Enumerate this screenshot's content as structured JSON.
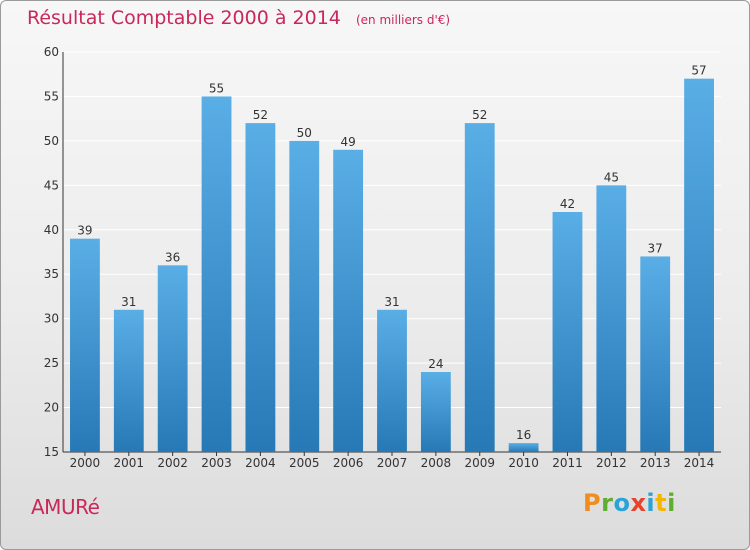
{
  "header": {
    "title": "Résultat Comptable 2000 à 2014",
    "unit": "(en milliers d'€)"
  },
  "footer": {
    "commune": "AMURé",
    "brand": {
      "text": "Proxiti",
      "colors": [
        "#f28c1e",
        "#5fae2f",
        "#2aa3d6",
        "#e8432a",
        "#2aa3d6",
        "#f2b705",
        "#5fae2f"
      ]
    }
  },
  "colors": {
    "bar_top": "#5aaee6",
    "bar_bottom": "#2779b6",
    "grid": "#ffffff",
    "accent": "#c8285a"
  },
  "chart_data": {
    "type": "bar",
    "title": "Résultat Comptable 2000 à 2014",
    "xlabel": "",
    "ylabel": "(en milliers d'€)",
    "categories": [
      "2000",
      "2001",
      "2002",
      "2003",
      "2004",
      "2005",
      "2006",
      "2007",
      "2008",
      "2009",
      "2010",
      "2011",
      "2012",
      "2013",
      "2014"
    ],
    "values": [
      39,
      31,
      36,
      55,
      52,
      50,
      49,
      31,
      24,
      52,
      16,
      42,
      45,
      37,
      57
    ],
    "ylim": [
      15,
      60
    ],
    "yticks": [
      15,
      20,
      25,
      30,
      35,
      40,
      45,
      50,
      55,
      60
    ],
    "grid": true
  }
}
